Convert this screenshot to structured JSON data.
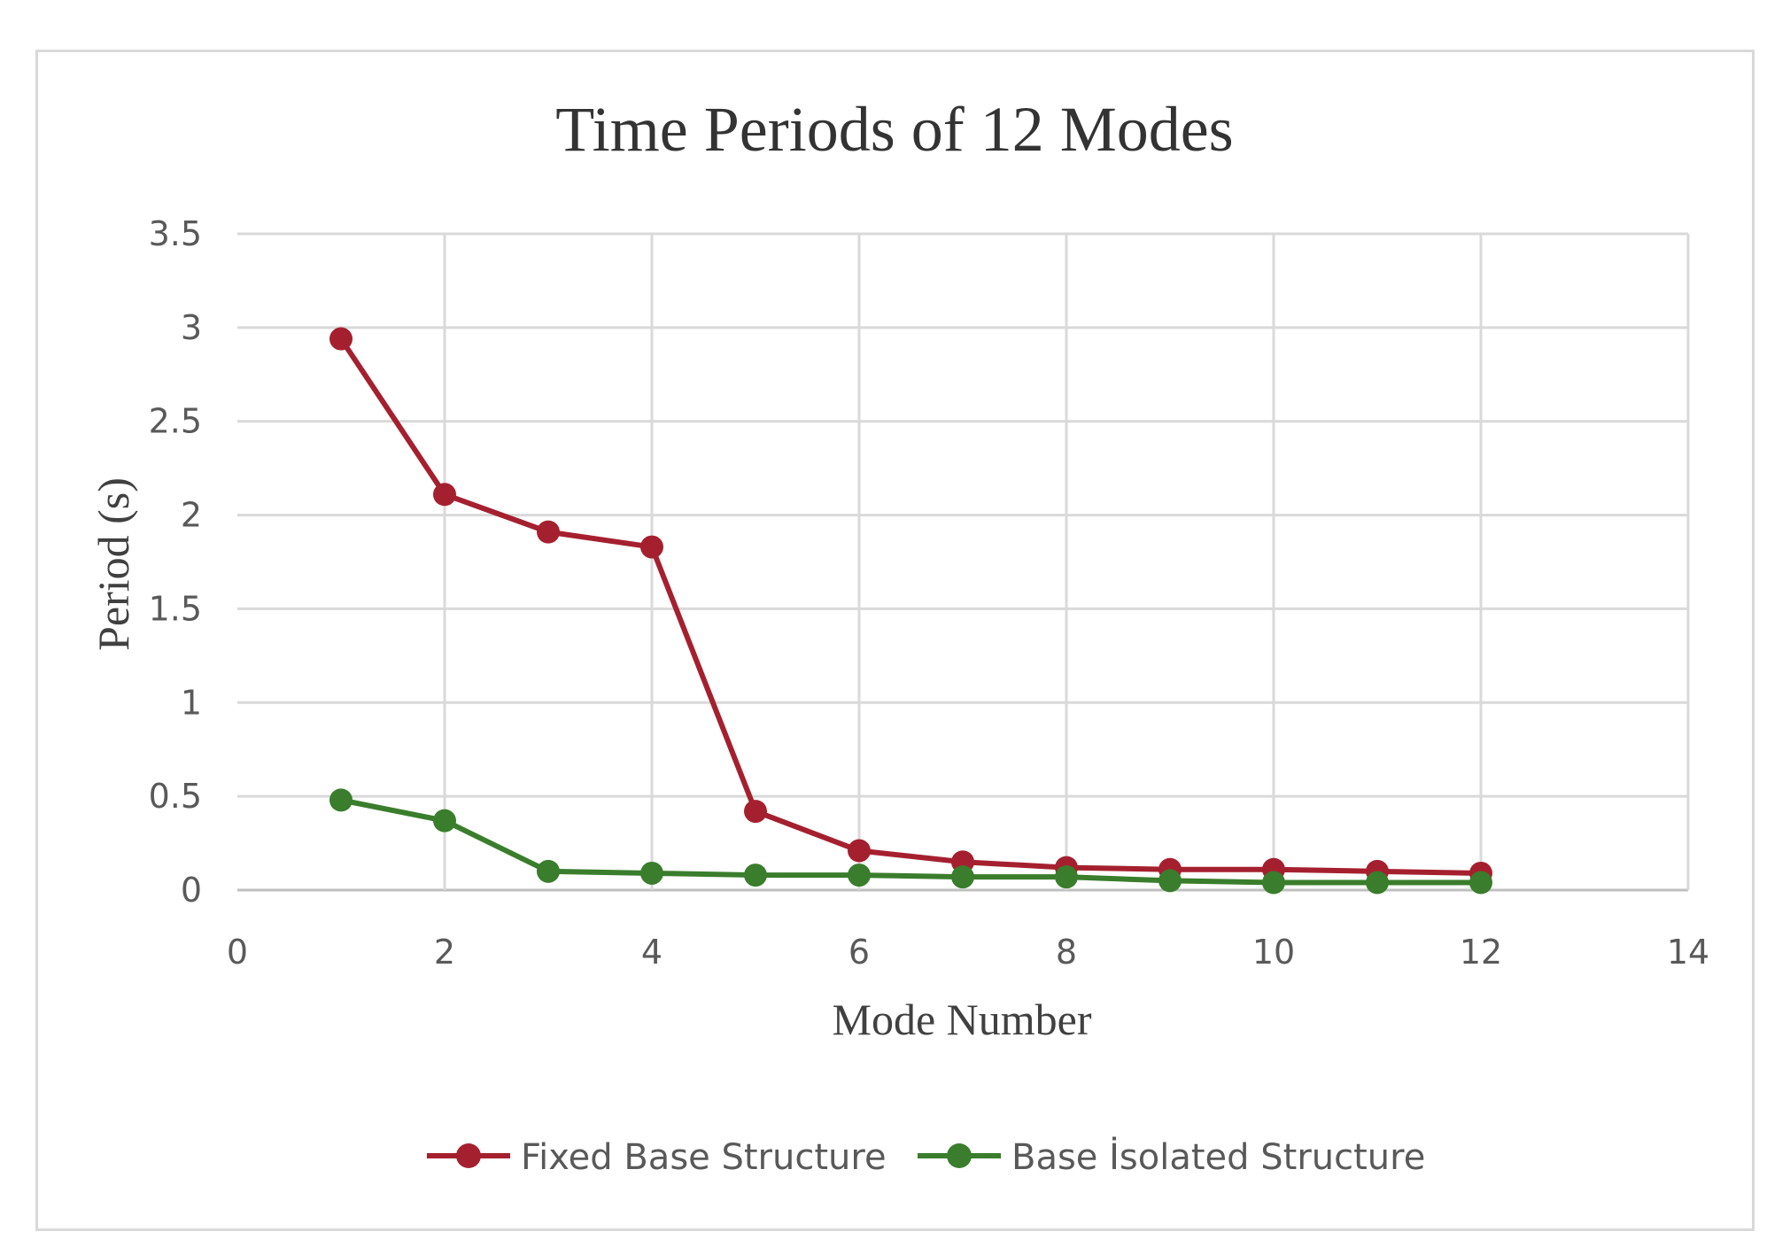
{
  "chart_data": {
    "type": "line",
    "title": "Time Periods of 12 Modes",
    "xlabel": "Mode Number",
    "ylabel": "Period (s)",
    "xlim": [
      0,
      14
    ],
    "ylim": [
      0,
      3.5
    ],
    "x_ticks": [
      0,
      2,
      4,
      6,
      8,
      10,
      12,
      14
    ],
    "y_ticks": [
      0,
      0.5,
      1,
      1.5,
      2,
      2.5,
      3,
      3.5
    ],
    "x_tick_labels": [
      "0",
      "2",
      "4",
      "6",
      "8",
      "10",
      "12",
      "14"
    ],
    "y_tick_labels": [
      "0",
      "0.5",
      "1",
      "1.5",
      "2",
      "2.5",
      "3",
      "3.5"
    ],
    "grid": true,
    "legend_position": "bottom",
    "x": [
      1,
      2,
      3,
      4,
      5,
      6,
      7,
      8,
      9,
      10,
      11,
      12
    ],
    "series": [
      {
        "name": "Fixed Base Structure",
        "color": "#a5202f",
        "values": [
          2.94,
          2.11,
          1.91,
          1.83,
          0.42,
          0.21,
          0.15,
          0.12,
          0.11,
          0.11,
          0.1,
          0.09
        ]
      },
      {
        "name": "Base İsolated Structure",
        "color": "#3a7d2c",
        "values": [
          0.48,
          0.37,
          0.1,
          0.09,
          0.08,
          0.08,
          0.07,
          0.07,
          0.05,
          0.04,
          0.04,
          0.04
        ]
      }
    ]
  }
}
